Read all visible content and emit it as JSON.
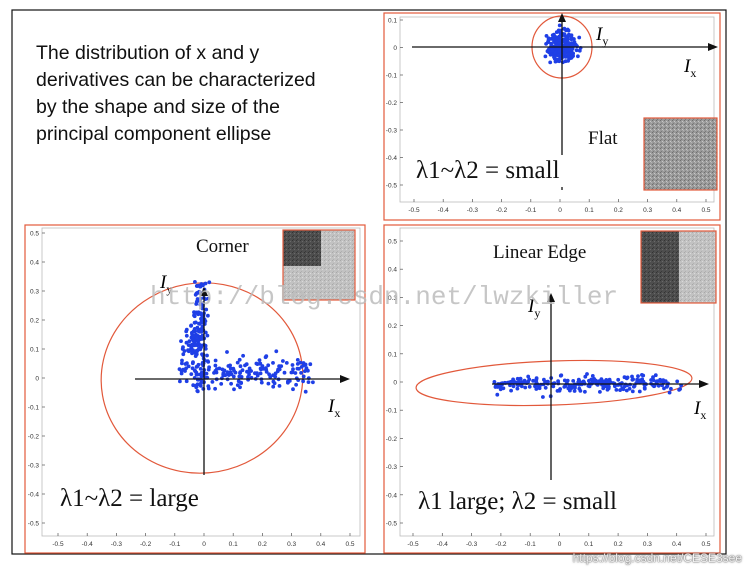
{
  "intro": {
    "lines": [
      "The distribution of x and y",
      "derivatives can be characterized",
      "by the shape and size of the",
      "principal component ellipse"
    ]
  },
  "panels": {
    "flat": {
      "title": "Flat",
      "label": "λ1~λ2 = small",
      "ix": "I",
      "ix_sub": "x",
      "iy": "I",
      "iy_sub": "y",
      "yticks": [
        "0.1",
        "0",
        "-0.1",
        "-0.2",
        "-0.3",
        "-0.4",
        "-0.5"
      ],
      "xticks": [
        "-0.5",
        "-0.4",
        "-0.3",
        "-0.2",
        "-0.1",
        "0",
        "0.1",
        "0.2",
        "0.3",
        "0.4",
        "0.5"
      ]
    },
    "corner": {
      "title": "Corner",
      "label": "λ1~λ2 = large",
      "ix": "I",
      "ix_sub": "x",
      "iy": "I",
      "iy_sub": "y",
      "yticks": [
        "0.5",
        "0.4",
        "0.3",
        "0.2",
        "0.1",
        "0",
        "-0.1",
        "-0.2",
        "-0.3",
        "-0.4",
        "-0.5"
      ],
      "xticks": [
        "-0.5",
        "-0.4",
        "-0.3",
        "-0.2",
        "-0.1",
        "0",
        "0.1",
        "0.2",
        "0.3",
        "0.4",
        "0.5"
      ]
    },
    "edge": {
      "title": "Linear Edge",
      "label": "λ1 large; λ2 = small",
      "ix": "I",
      "ix_sub": "x",
      "iy": "I",
      "iy_sub": "y",
      "yticks": [
        "0.5",
        "0.4",
        "0.3",
        "0.2",
        "0.1",
        "0",
        "-0.1",
        "-0.2",
        "-0.3",
        "-0.4",
        "-0.5"
      ],
      "xticks": [
        "-0.5",
        "-0.4",
        "-0.3",
        "-0.2",
        "-0.1",
        "0",
        "0.1",
        "0.2",
        "0.3",
        "0.4",
        "0.5"
      ]
    }
  },
  "watermark": "http://blog.csdn.net/lwzkiller",
  "credit": "https://blog.csdn.net/CESE3see",
  "colors": {
    "frame": "#e2593b",
    "points": "#1f3fe6",
    "axis": "#111111"
  }
}
